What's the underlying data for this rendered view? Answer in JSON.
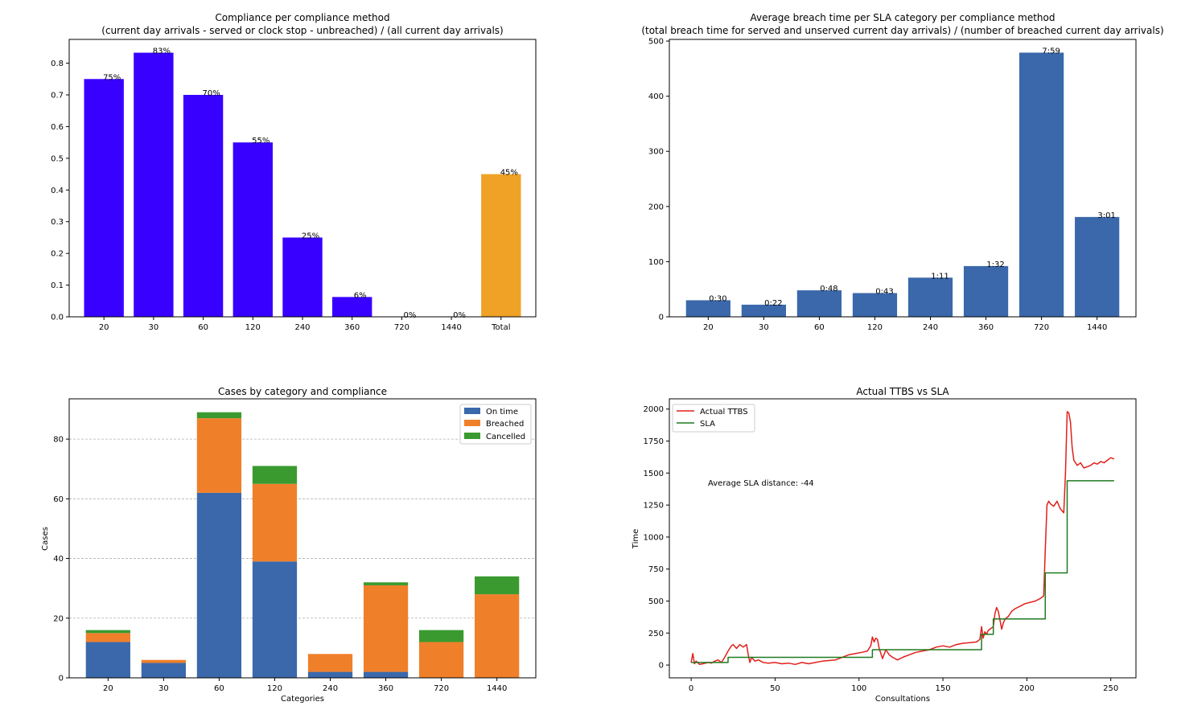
{
  "chart_data": [
    {
      "type": "bar",
      "title": "Compliance per compliance method",
      "subtitle": "(current day arrivals - served or clock stop - unbreached) / (all current day arrivals)",
      "xlabel": "",
      "ylabel": "",
      "categories": [
        "20",
        "30",
        "60",
        "120",
        "240",
        "360",
        "720",
        "1440",
        "Total"
      ],
      "values": [
        0.75,
        0.833,
        0.7,
        0.55,
        0.25,
        0.0625,
        0,
        0,
        0.45
      ],
      "labels": [
        "75%",
        "83%",
        "70%",
        "55%",
        "25%",
        "6%",
        "0%",
        "0%",
        "45%"
      ],
      "colors": [
        "#3700ff",
        "#3700ff",
        "#3700ff",
        "#3700ff",
        "#3700ff",
        "#3700ff",
        "#3700ff",
        "#3700ff",
        "#f0a226"
      ],
      "ylim": [
        0,
        0.875
      ],
      "yticks": [
        0.0,
        0.1,
        0.2,
        0.3,
        0.4,
        0.5,
        0.6,
        0.7,
        0.8
      ],
      "ytick_labels": [
        "0.0",
        "0.1",
        "0.2",
        "0.3",
        "0.4",
        "0.5",
        "0.6",
        "0.7",
        "0.8"
      ]
    },
    {
      "type": "bar",
      "title": "Average breach time per SLA category per compliance method",
      "subtitle": "(total breach time for served and unserved current day arrivals) / (number of breached current day arrivals)",
      "xlabel": "",
      "ylabel": "",
      "categories": [
        "20",
        "30",
        "60",
        "120",
        "240",
        "360",
        "720",
        "1440"
      ],
      "values": [
        30,
        22,
        48,
        43,
        71,
        92,
        479,
        181
      ],
      "labels": [
        "0:30",
        "0:22",
        "0:48",
        "0:43",
        "1:11",
        "1:32",
        "7:59",
        "3:01"
      ],
      "color": "#3a68ab",
      "ylim": [
        0,
        503
      ],
      "yticks": [
        0,
        100,
        200,
        300,
        400,
        500
      ],
      "ytick_labels": [
        "0",
        "100",
        "200",
        "300",
        "400",
        "500"
      ]
    },
    {
      "type": "bar",
      "stacked": true,
      "title": "Cases by category and compliance",
      "xlabel": "Categories",
      "ylabel": "Cases",
      "categories": [
        "20",
        "30",
        "60",
        "120",
        "240",
        "360",
        "720",
        "1440"
      ],
      "series": [
        {
          "name": "On time",
          "color": "#3a68ab",
          "values": [
            12,
            5,
            62,
            39,
            2,
            2,
            0,
            0
          ]
        },
        {
          "name": "Breached",
          "color": "#f07f2a",
          "values": [
            3,
            1,
            25,
            26,
            6,
            29,
            12,
            28
          ]
        },
        {
          "name": "Cancelled",
          "color": "#3a9a2f",
          "values": [
            1,
            0,
            2,
            6,
            0,
            1,
            4,
            6
          ]
        }
      ],
      "legend_position": "top-right",
      "grid": "y dashed",
      "ylim": [
        0,
        93.5
      ],
      "yticks": [
        0,
        20,
        40,
        60,
        80
      ],
      "ytick_labels": [
        "0",
        "20",
        "40",
        "60",
        "80"
      ]
    },
    {
      "type": "line",
      "title": "Actual TTBS vs SLA",
      "xlabel": "Consultations",
      "ylabel": "Time",
      "annotation": "Average SLA distance: -44",
      "xlim": [
        -13,
        265
      ],
      "ylim": [
        -100,
        2080
      ],
      "xticks": [
        0,
        50,
        100,
        150,
        200,
        250
      ],
      "xtick_labels": [
        "0",
        "50",
        "100",
        "150",
        "200",
        "250"
      ],
      "yticks": [
        0,
        250,
        500,
        750,
        1000,
        1250,
        1500,
        1750,
        2000
      ],
      "ytick_labels": [
        "0",
        "250",
        "500",
        "750",
        "1000",
        "1250",
        "1500",
        "1750",
        "2000"
      ],
      "legend_position": "top-left",
      "series": [
        {
          "name": "Actual TTBS",
          "color": "#e0201b",
          "x": [
            0,
            1,
            2,
            3,
            5,
            7,
            10,
            12,
            14,
            16,
            18,
            20,
            22,
            24,
            25,
            27,
            29,
            31,
            33,
            34,
            35,
            36,
            38,
            40,
            43,
            46,
            50,
            54,
            58,
            62,
            66,
            70,
            74,
            78,
            82,
            86,
            90,
            94,
            98,
            102,
            105,
            107,
            108,
            109,
            110,
            111,
            112,
            114,
            116,
            118,
            120,
            123,
            126,
            130,
            134,
            138,
            142,
            146,
            150,
            154,
            158,
            162,
            166,
            170,
            172,
            173,
            174,
            175,
            176,
            177,
            178,
            180,
            181,
            182,
            183,
            185,
            186,
            187,
            189,
            191,
            193,
            196,
            199,
            202,
            205,
            208,
            210,
            211,
            212,
            213,
            214,
            216,
            218,
            220,
            222,
            223,
            224,
            225,
            226,
            227,
            228,
            230,
            232,
            234,
            236,
            238,
            240,
            242,
            244,
            246,
            248,
            250,
            252
          ],
          "y": [
            20,
            90,
            10,
            30,
            5,
            10,
            20,
            15,
            30,
            40,
            20,
            60,
            110,
            150,
            160,
            130,
            160,
            140,
            160,
            80,
            20,
            60,
            30,
            40,
            20,
            15,
            20,
            10,
            15,
            5,
            20,
            10,
            20,
            30,
            35,
            40,
            60,
            80,
            90,
            100,
            110,
            150,
            220,
            180,
            210,
            200,
            130,
            50,
            120,
            80,
            60,
            40,
            60,
            80,
            100,
            110,
            120,
            140,
            150,
            140,
            160,
            170,
            175,
            180,
            200,
            300,
            210,
            260,
            240,
            270,
            280,
            300,
            400,
            450,
            420,
            280,
            330,
            360,
            380,
            420,
            440,
            460,
            480,
            490,
            500,
            520,
            540,
            900,
            1250,
            1280,
            1260,
            1240,
            1280,
            1220,
            1190,
            1500,
            1980,
            1970,
            1900,
            1700,
            1600,
            1560,
            1580,
            1540,
            1550,
            1560,
            1580,
            1570,
            1590,
            1580,
            1600,
            1620,
            1610
          ]
        },
        {
          "name": "SLA",
          "color": "#1f7a1f",
          "x": [
            0,
            22,
            22,
            108,
            108,
            173,
            173,
            180,
            180,
            211,
            211,
            224,
            224,
            252
          ],
          "y": [
            20,
            20,
            60,
            60,
            120,
            120,
            240,
            240,
            360,
            360,
            720,
            720,
            1440,
            1440
          ]
        }
      ]
    }
  ]
}
